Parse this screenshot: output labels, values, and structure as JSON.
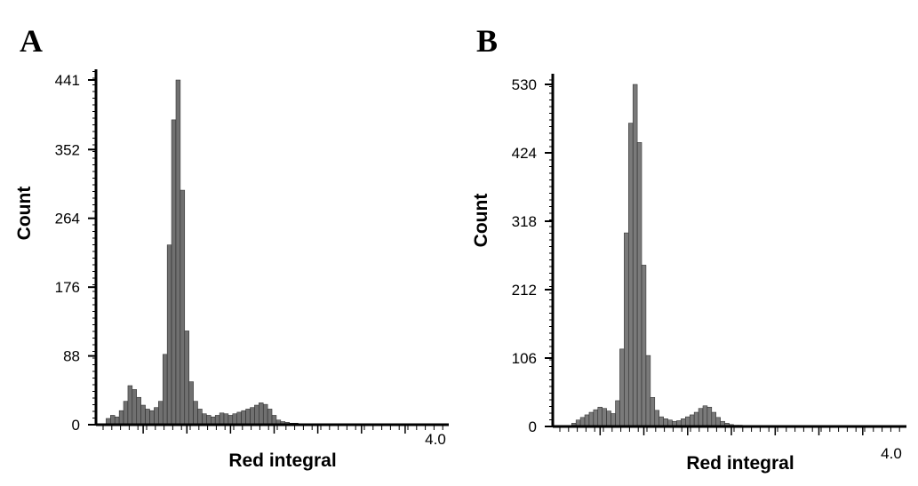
{
  "panels": [
    {
      "letter": "A"
    },
    {
      "letter": "B"
    }
  ],
  "chart_data": [
    {
      "type": "bar",
      "title": "",
      "xlabel": "Red integral",
      "ylabel": "Count",
      "xlim": [
        0,
        4.0
      ],
      "ylim": [
        0,
        441
      ],
      "yticks": [
        "0",
        "88",
        "176",
        "264",
        "352",
        "441"
      ],
      "xtick_label": "4.0",
      "grid": false,
      "x": [
        0.1,
        0.15,
        0.2,
        0.25,
        0.3,
        0.35,
        0.4,
        0.45,
        0.5,
        0.55,
        0.6,
        0.65,
        0.7,
        0.75,
        0.8,
        0.85,
        0.9,
        0.95,
        1.0,
        1.05,
        1.1,
        1.15,
        1.2,
        1.25,
        1.3,
        1.35,
        1.4,
        1.45,
        1.5,
        1.55,
        1.6,
        1.65,
        1.7,
        1.75,
        1.8,
        1.85,
        1.9,
        1.95,
        2.0,
        2.05,
        2.1,
        2.15,
        2.2,
        2.25,
        2.3,
        2.35,
        2.4,
        2.45,
        2.5,
        2.55,
        2.6,
        2.65,
        2.7,
        2.75,
        2.8,
        2.85,
        2.9,
        2.95,
        3.0
      ],
      "values": [
        8,
        12,
        10,
        18,
        30,
        50,
        45,
        35,
        25,
        20,
        18,
        22,
        30,
        90,
        230,
        390,
        441,
        300,
        120,
        55,
        30,
        20,
        14,
        12,
        10,
        12,
        15,
        14,
        12,
        14,
        16,
        18,
        20,
        22,
        25,
        28,
        26,
        20,
        12,
        6,
        4,
        3,
        2,
        2,
        1,
        1,
        1,
        1,
        1,
        1,
        1,
        1,
        1,
        1,
        1,
        1,
        1,
        1,
        1
      ]
    },
    {
      "type": "bar",
      "title": "",
      "xlabel": "Red integral",
      "ylabel": "Count",
      "xlim": [
        0,
        4.0
      ],
      "ylim": [
        0,
        530
      ],
      "yticks": [
        "0",
        "106",
        "212",
        "318",
        "424",
        "530"
      ],
      "xtick_label": "4.0",
      "grid": false,
      "x": [
        0.2,
        0.25,
        0.3,
        0.35,
        0.4,
        0.45,
        0.5,
        0.55,
        0.6,
        0.65,
        0.7,
        0.75,
        0.8,
        0.85,
        0.9,
        0.95,
        1.0,
        1.05,
        1.1,
        1.15,
        1.2,
        1.25,
        1.3,
        1.35,
        1.4,
        1.45,
        1.5,
        1.55,
        1.6,
        1.65,
        1.7,
        1.75,
        1.8,
        1.85,
        1.9,
        1.95,
        2.0,
        2.05,
        2.1,
        2.15,
        2.2,
        2.25,
        2.3,
        2.35,
        2.4,
        2.45,
        2.5,
        2.55,
        2.6,
        2.65,
        2.7,
        2.75,
        2.8,
        2.85,
        2.9,
        2.95,
        3.0
      ],
      "values": [
        5,
        10,
        14,
        18,
        22,
        26,
        30,
        28,
        24,
        20,
        40,
        120,
        300,
        470,
        530,
        440,
        250,
        110,
        45,
        25,
        15,
        12,
        10,
        8,
        9,
        12,
        15,
        18,
        22,
        28,
        32,
        30,
        22,
        14,
        8,
        5,
        3,
        2,
        2,
        1,
        1,
        1,
        1,
        1,
        1,
        1,
        1,
        1,
        1,
        1,
        1,
        1,
        1,
        1,
        1,
        1,
        1
      ]
    }
  ]
}
